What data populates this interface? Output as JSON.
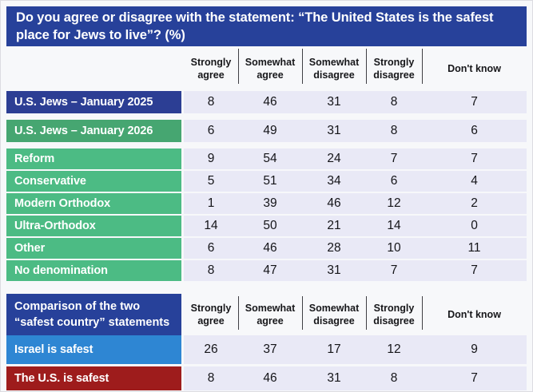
{
  "chart_data": {
    "type": "table",
    "title": "Do you agree or disagree with the statement: “The United States is the safest place for Jews to live”? (%)",
    "columns": [
      "Strongly agree",
      "Somewhat agree",
      "Somewhat disagree",
      "Strongly disagree",
      "Don't know"
    ],
    "table1": {
      "rows": [
        {
          "label": "U.S. Jews – January 2025",
          "values": [
            8,
            46,
            31,
            8,
            7
          ]
        },
        {
          "label": "U.S. Jews – January 2026",
          "values": [
            6,
            49,
            31,
            8,
            6
          ]
        },
        {
          "label": "Reform",
          "values": [
            9,
            54,
            24,
            7,
            7
          ]
        },
        {
          "label": "Conservative",
          "values": [
            5,
            51,
            34,
            6,
            4
          ]
        },
        {
          "label": "Modern Orthodox",
          "values": [
            1,
            39,
            46,
            12,
            2
          ]
        },
        {
          "label": "Ultra-Orthodox",
          "values": [
            14,
            50,
            21,
            14,
            0
          ]
        },
        {
          "label": "Other",
          "values": [
            6,
            46,
            28,
            10,
            11
          ]
        },
        {
          "label": "No denomination",
          "values": [
            8,
            47,
            31,
            7,
            7
          ]
        }
      ]
    },
    "table2": {
      "header_label": "Comparison of the two “safest country” statements",
      "rows": [
        {
          "label": "Israel is safest",
          "values": [
            26,
            37,
            17,
            12,
            9
          ]
        },
        {
          "label": "The U.S. is safest",
          "values": [
            8,
            46,
            31,
            8,
            7
          ]
        }
      ]
    }
  },
  "colors": {
    "page_bg": "#f7f8fa",
    "banner_bg": "#27419a",
    "us2025_bg": "#2c3e94",
    "us2026_bg": "#46a671",
    "denom_bg": "#4cbb84",
    "israel_bg": "#2e86d3",
    "ussafest_bg": "#9e1c1c",
    "cell_bg": "#e9e9f6",
    "divider": "#3f3f44"
  }
}
